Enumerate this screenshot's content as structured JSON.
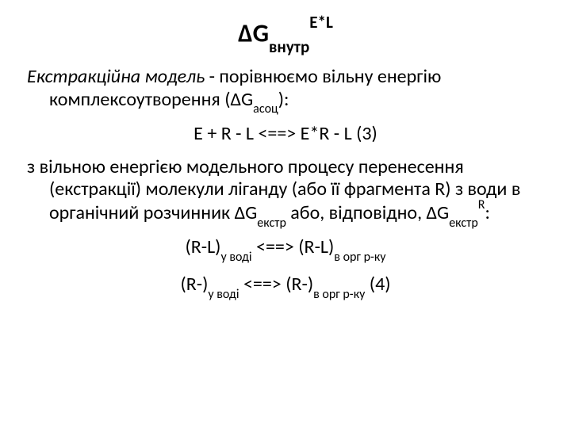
{
  "title": {
    "base": "ΔG",
    "sub": "внутр",
    "sup": "E*L"
  },
  "p1": {
    "lead_italic": "Екстракційна модель",
    "dash": " - ",
    "rest": "порівнюємо вільну енергію комплексоутворення  (ΔG",
    "rest_sub": "асоц",
    "rest_tail": "):"
  },
  "eq1": "E + R - L <==> E*R - L (3)",
  "p2": {
    "a": "з вільною енергією модельного процесу перенесення (екстракції) молекули ліганду (або її фрагмента R) з води в органічний розчинник ΔG",
    "a_sub": "екстр",
    "b": " або, відповідно, ΔG",
    "b_sub": "екстр",
    "b_sup": "R",
    "tail": ":"
  },
  "eq2": {
    "l1": "(R-L)",
    "l1_sub": "у воді",
    "mid": " <==> ",
    "r1": "(R-L)",
    "r1_sub": "в орг р-ку"
  },
  "eq3": {
    "l1": "(R-)",
    "l1_sub": "у воді",
    "mid": " <==> ",
    "r1": "(R-)",
    "r1_sub": "в орг р-ку",
    "num": " (4)"
  }
}
